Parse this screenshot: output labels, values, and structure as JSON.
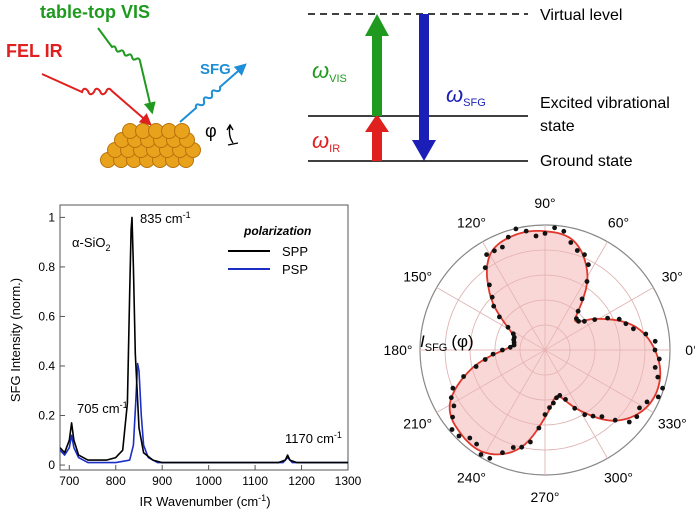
{
  "schematic": {
    "beam_labels": {
      "vis": "table-top VIS",
      "ir": "FEL IR",
      "sfg": "SFG",
      "angle": "φ"
    },
    "colors": {
      "vis": "#1f9a1f",
      "ir": "#e01f1f",
      "sfg": "#1e8fd6",
      "sfg_arrow": "#1b1fb8",
      "crystal": "#e8a21c"
    }
  },
  "energy_diagram": {
    "levels": {
      "virtual": "Virtual level",
      "excited_line1": "Excited vibrational",
      "excited_line2": "state",
      "ground": "Ground state"
    },
    "symbols": {
      "omega": "ω",
      "vis_sub": "VIS",
      "ir_sub": "IR",
      "sfg_sub": "SFG"
    }
  },
  "chart_data": [
    {
      "type": "line",
      "xlabel": "IR Wavenumber (cm",
      "xlabel_sup": "-1",
      "xlabel_end": ")",
      "ylabel": "SFG Intensity (norm.)",
      "xlim": [
        680,
        1300
      ],
      "ylim": [
        -0.02,
        1.05
      ],
      "x_ticks": [
        700,
        800,
        900,
        1000,
        1100,
        1200,
        1300
      ],
      "y_ticks": [
        0,
        0.2,
        0.4,
        0.6,
        0.8,
        1
      ],
      "y_tick_labels": [
        "0",
        "0.2",
        "0.4",
        "0.6",
        "0.8",
        "1"
      ],
      "sample_label": "α-SiO",
      "sample_sub": "2",
      "legend_title": "polarization",
      "legend_position": "top-right",
      "annotations": [
        {
          "text": "835 cm",
          "sup": "-1",
          "at": [
            835,
            1.0
          ]
        },
        {
          "text": "705 cm",
          "sup": "-1",
          "at": [
            705,
            0.17
          ]
        },
        {
          "text": "1170 cm",
          "sup": "-1",
          "at": [
            1170,
            0.04
          ]
        }
      ],
      "series": [
        {
          "name": "SPP",
          "color": "#000000",
          "x": [
            680,
            690,
            700,
            705,
            710,
            720,
            740,
            780,
            800,
            815,
            825,
            830,
            833,
            835,
            838,
            842,
            850,
            860,
            880,
            900,
            1000,
            1100,
            1150,
            1165,
            1170,
            1175,
            1190,
            1250,
            1300
          ],
          "y": [
            0.07,
            0.05,
            0.1,
            0.17,
            0.1,
            0.04,
            0.02,
            0.02,
            0.03,
            0.06,
            0.25,
            0.7,
            0.95,
            1.0,
            0.8,
            0.45,
            0.15,
            0.05,
            0.02,
            0.01,
            0.01,
            0.01,
            0.01,
            0.02,
            0.04,
            0.02,
            0.01,
            0.01,
            0.01
          ]
        },
        {
          "name": "PSP",
          "color": "#1c2fc4",
          "x": [
            680,
            690,
            700,
            705,
            710,
            720,
            740,
            800,
            830,
            838,
            843,
            847,
            850,
            855,
            860,
            870,
            890,
            1000,
            1100,
            1160,
            1170,
            1180,
            1300
          ],
          "y": [
            0.06,
            0.04,
            0.07,
            0.12,
            0.07,
            0.03,
            0.01,
            0.01,
            0.02,
            0.08,
            0.25,
            0.41,
            0.38,
            0.2,
            0.08,
            0.03,
            0.01,
            0.01,
            0.01,
            0.01,
            0.03,
            0.01,
            0.01
          ]
        }
      ]
    },
    {
      "type": "polar",
      "label_main": "I",
      "label_sub": "SFG",
      "label_arg": "(φ)",
      "angle_ticks": [
        "90°",
        "60°",
        "30°",
        "0°",
        "330°",
        "300°",
        "270°",
        "240°",
        "210°",
        "180°",
        "150°",
        "120°"
      ],
      "angle_tick_values": [
        90,
        60,
        30,
        0,
        330,
        300,
        270,
        240,
        210,
        180,
        150,
        120
      ],
      "fit_color": "#e0382c",
      "fill_color": "#f7caca",
      "points_color": "#111111",
      "fit_angles": [
        0,
        15,
        30,
        45,
        60,
        75,
        90,
        105,
        120,
        135,
        150,
        165,
        180,
        195,
        210,
        225,
        240,
        255,
        270,
        285,
        300,
        315,
        330,
        345
      ],
      "fit_radii": [
        0.88,
        0.74,
        0.5,
        0.34,
        0.68,
        0.9,
        0.95,
        0.95,
        0.88,
        0.62,
        0.33,
        0.25,
        0.33,
        0.62,
        0.88,
        0.95,
        0.95,
        0.82,
        0.54,
        0.38,
        0.56,
        0.8,
        0.93,
        0.95
      ]
    }
  ]
}
